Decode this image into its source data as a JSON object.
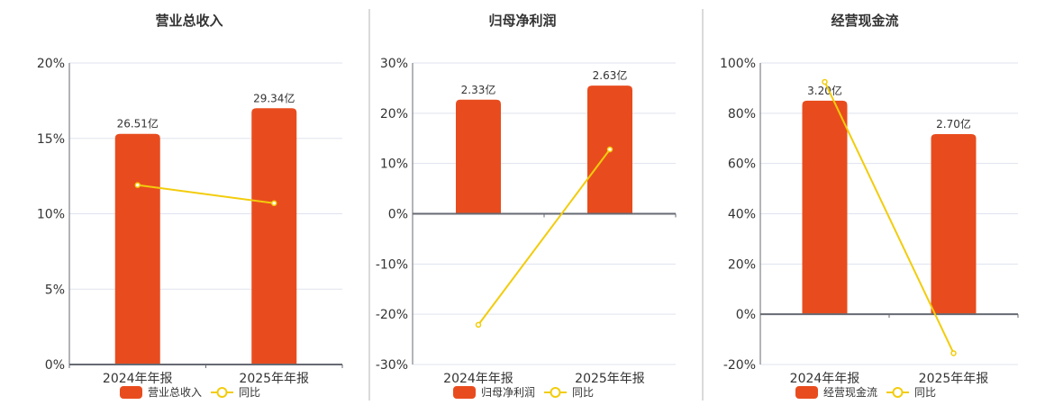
{
  "colors": {
    "bar": "#e84c1e",
    "line": "#f2cc0c",
    "grid": "#dfe3ee",
    "axis": "#666a73",
    "divider": "#b5b5b5"
  },
  "chart_data": [
    {
      "type": "bar+line",
      "title": "营业总收入",
      "categories": [
        "2024年年报",
        "2025年年报"
      ],
      "yticks": [
        "20%",
        "15%",
        "10%",
        "5%",
        "0%"
      ],
      "ylim": [
        0,
        20
      ],
      "bar_series": {
        "name": "营业总收入",
        "values": [
          26.51,
          29.34
        ],
        "labels": [
          "26.51亿",
          "29.34亿"
        ],
        "heights_on_axis": [
          15.3,
          17.0
        ]
      },
      "line_series": {
        "name": "同比",
        "values": [
          11.9,
          10.7
        ]
      }
    },
    {
      "type": "bar+line",
      "title": "归母净利润",
      "categories": [
        "2024年年报",
        "2025年年报"
      ],
      "yticks": [
        "30%",
        "20%",
        "10%",
        "0%",
        "-10%",
        "-20%",
        "-30%"
      ],
      "ylim": [
        -30,
        30
      ],
      "bar_series": {
        "name": "归母净利润",
        "values": [
          2.33,
          2.63
        ],
        "labels": [
          "2.33亿",
          "2.63亿"
        ],
        "heights_on_axis": [
          22.7,
          25.5
        ]
      },
      "line_series": {
        "name": "同比",
        "values": [
          -22.1,
          12.8
        ]
      }
    },
    {
      "type": "bar+line",
      "title": "经营现金流",
      "categories": [
        "2024年年报",
        "2025年年报"
      ],
      "yticks": [
        "100%",
        "80%",
        "60%",
        "40%",
        "20%",
        "0%",
        "-20%"
      ],
      "ylim": [
        -20,
        100
      ],
      "bar_series": {
        "name": "经营现金流",
        "values": [
          3.2,
          2.7
        ],
        "labels": [
          "3.20亿",
          "2.70亿"
        ],
        "heights_on_axis": [
          85.0,
          71.7
        ]
      },
      "line_series": {
        "name": "同比",
        "values": [
          92.5,
          -15.5
        ]
      }
    }
  ]
}
